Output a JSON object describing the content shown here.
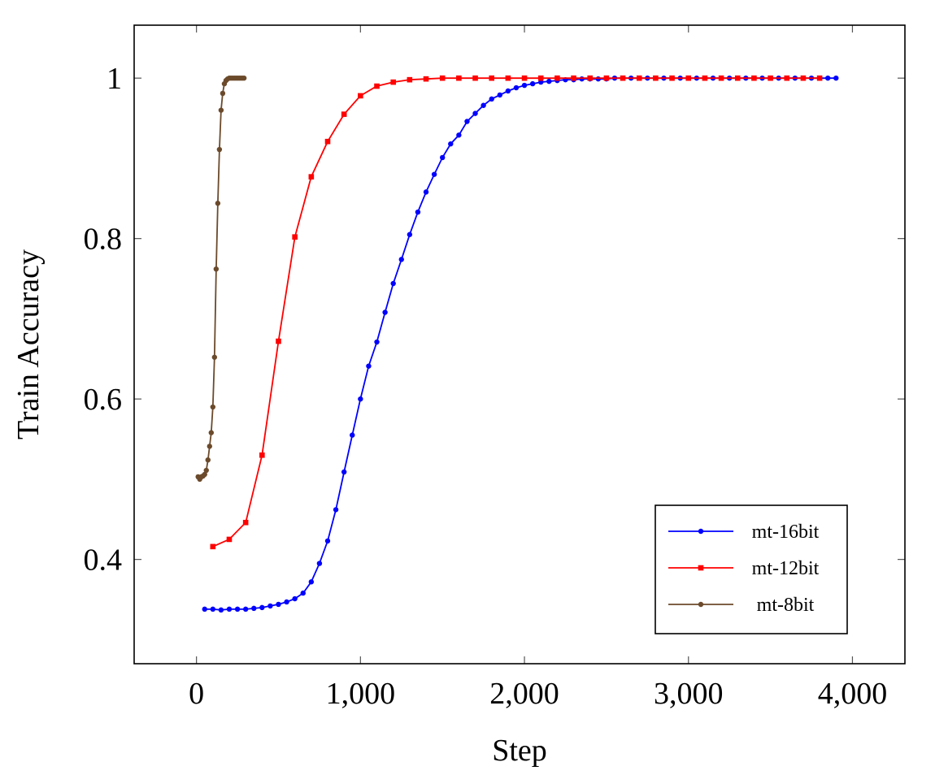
{
  "chart_data": {
    "type": "line",
    "title": "",
    "xlabel": "Step",
    "ylabel": "Train Accuracy",
    "xlim": [
      -380,
      4320
    ],
    "ylim": [
      0.27,
      1.066
    ],
    "xticks": [
      0,
      1000,
      2000,
      3000,
      4000
    ],
    "xtick_labels": [
      "0",
      "1,000",
      "2,000",
      "3,000",
      "4,000"
    ],
    "yticks": [
      0.4,
      0.6,
      0.8,
      1.0
    ],
    "ytick_labels": [
      "0.4",
      "0.6",
      "0.8",
      "1"
    ],
    "grid": false,
    "legend_position": "bottom-right",
    "series": [
      {
        "name": "mt-16bit",
        "color": "#0000ff",
        "marker": "circle",
        "x": [
          50,
          100,
          150,
          200,
          250,
          300,
          350,
          400,
          450,
          500,
          550,
          600,
          650,
          700,
          750,
          800,
          850,
          900,
          950,
          1000,
          1050,
          1100,
          1150,
          1200,
          1250,
          1300,
          1350,
          1400,
          1450,
          1500,
          1550,
          1600,
          1650,
          1700,
          1750,
          1800,
          1850,
          1900,
          1950,
          2000,
          2050,
          2100,
          2150,
          2200,
          2250,
          2300,
          2350,
          2400,
          2450,
          2500,
          2550,
          2600,
          2650,
          2700,
          2750,
          2800,
          2850,
          2900,
          2950,
          3000,
          3050,
          3100,
          3150,
          3200,
          3250,
          3300,
          3350,
          3400,
          3450,
          3500,
          3550,
          3600,
          3650,
          3700,
          3750,
          3800,
          3850,
          3900
        ],
        "y": [
          0.338,
          0.338,
          0.337,
          0.338,
          0.338,
          0.338,
          0.339,
          0.34,
          0.342,
          0.344,
          0.347,
          0.351,
          0.358,
          0.372,
          0.395,
          0.423,
          0.462,
          0.509,
          0.555,
          0.6,
          0.641,
          0.671,
          0.708,
          0.744,
          0.774,
          0.805,
          0.833,
          0.858,
          0.88,
          0.901,
          0.918,
          0.929,
          0.946,
          0.956,
          0.966,
          0.974,
          0.979,
          0.984,
          0.988,
          0.991,
          0.993,
          0.995,
          0.996,
          0.997,
          0.998,
          0.998,
          0.999,
          0.999,
          0.999,
          0.999,
          1.0,
          1.0,
          1.0,
          1.0,
          1.0,
          1.0,
          1.0,
          1.0,
          1.0,
          1.0,
          1.0,
          1.0,
          1.0,
          1.0,
          1.0,
          1.0,
          1.0,
          1.0,
          1.0,
          1.0,
          1.0,
          1.0,
          1.0,
          1.0,
          1.0,
          1.0,
          1.0,
          1.0
        ]
      },
      {
        "name": "mt-12bit",
        "color": "#ff0000",
        "marker": "square",
        "x": [
          100,
          200,
          300,
          400,
          500,
          600,
          700,
          800,
          900,
          1000,
          1100,
          1200,
          1300,
          1400,
          1500,
          1600,
          1700,
          1800,
          1900,
          2000,
          2100,
          2200,
          2300,
          2400,
          2500,
          2600,
          2700,
          2800,
          2900,
          3000,
          3100,
          3200,
          3300,
          3400,
          3500,
          3600,
          3700,
          3800
        ],
        "y": [
          0.416,
          0.425,
          0.446,
          0.53,
          0.672,
          0.802,
          0.877,
          0.921,
          0.955,
          0.978,
          0.99,
          0.995,
          0.998,
          0.999,
          1.0,
          1.0,
          1.0,
          1.0,
          1.0,
          1.0,
          1.0,
          1.0,
          1.0,
          1.0,
          1.0,
          1.0,
          1.0,
          1.0,
          1.0,
          1.0,
          1.0,
          1.0,
          1.0,
          1.0,
          1.0,
          1.0,
          1.0,
          1.0
        ]
      },
      {
        "name": "mt-8bit",
        "color": "#6b4a2b",
        "marker": "circle",
        "x": [
          10,
          20,
          30,
          40,
          50,
          60,
          70,
          80,
          90,
          100,
          110,
          120,
          130,
          140,
          150,
          160,
          170,
          180,
          190,
          200,
          210,
          220,
          230,
          240,
          250,
          260,
          270,
          280,
          290
        ],
        "y": [
          0.503,
          0.5,
          0.503,
          0.504,
          0.506,
          0.511,
          0.524,
          0.541,
          0.558,
          0.59,
          0.652,
          0.762,
          0.844,
          0.911,
          0.96,
          0.981,
          0.993,
          0.997,
          0.999,
          1.0,
          1.0,
          1.0,
          1.0,
          1.0,
          1.0,
          1.0,
          1.0,
          1.0,
          1.0
        ]
      }
    ]
  }
}
